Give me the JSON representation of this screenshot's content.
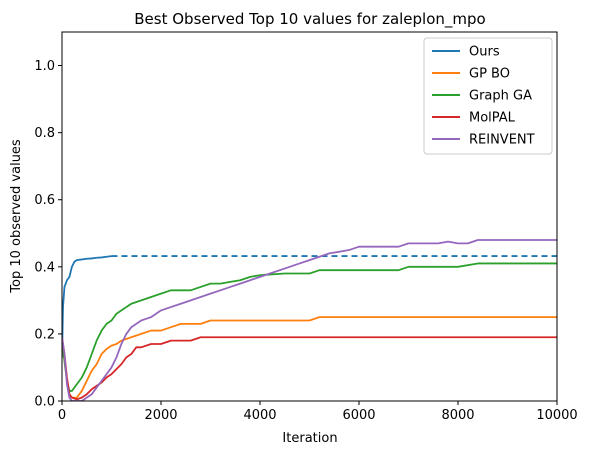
{
  "chart_data": {
    "type": "line",
    "title": "Best Observed Top 10 values for zaleplon_mpo",
    "xlabel": "Iteration",
    "ylabel": "Top 10 observed values",
    "xlim": [
      0,
      10000
    ],
    "ylim": [
      0,
      1.1
    ],
    "x_ticks": [
      0,
      2000,
      4000,
      6000,
      8000,
      10000
    ],
    "y_ticks": [
      0.0,
      0.2,
      0.4,
      0.6,
      0.8,
      1.0
    ],
    "grid": false,
    "legend_position": "top-right",
    "series": [
      {
        "name": "Ours",
        "color": "#1f77b4",
        "x": [
          0,
          20,
          50,
          100,
          150,
          200,
          250,
          300,
          400,
          500,
          600,
          700,
          800,
          900,
          1000
        ],
        "y": [
          0.13,
          0.28,
          0.34,
          0.36,
          0.37,
          0.4,
          0.415,
          0.42,
          0.422,
          0.424,
          0.425,
          0.427,
          0.428,
          0.43,
          0.432
        ],
        "extension": {
          "style": "dashed",
          "x": [
            1000,
            10000
          ],
          "y": [
            0.432,
            0.432
          ]
        }
      },
      {
        "name": "GP BO",
        "color": "#ff7f0e",
        "x": [
          0,
          50,
          100,
          150,
          200,
          300,
          400,
          500,
          600,
          700,
          800,
          900,
          1000,
          1100,
          1200,
          1400,
          1600,
          1800,
          2000,
          2200,
          2400,
          2600,
          2800,
          3000,
          4000,
          5000,
          5200,
          6000,
          8000,
          10000
        ],
        "y": [
          0.18,
          0.12,
          0.06,
          0.02,
          0.01,
          0.01,
          0.03,
          0.06,
          0.09,
          0.11,
          0.14,
          0.155,
          0.165,
          0.17,
          0.18,
          0.19,
          0.2,
          0.21,
          0.21,
          0.22,
          0.23,
          0.23,
          0.23,
          0.24,
          0.24,
          0.24,
          0.25,
          0.25,
          0.25,
          0.25
        ]
      },
      {
        "name": "Graph GA",
        "color": "#2ca02c",
        "x": [
          0,
          50,
          100,
          150,
          200,
          300,
          400,
          500,
          600,
          700,
          800,
          900,
          1000,
          1100,
          1200,
          1400,
          1600,
          1800,
          2000,
          2200,
          2400,
          2600,
          2800,
          3000,
          3200,
          3400,
          3600,
          3800,
          4000,
          4500,
          5000,
          5200,
          6000,
          6800,
          7000,
          8000,
          8400,
          9000,
          10000
        ],
        "y": [
          0.18,
          0.12,
          0.06,
          0.03,
          0.03,
          0.05,
          0.07,
          0.1,
          0.14,
          0.18,
          0.21,
          0.23,
          0.24,
          0.26,
          0.27,
          0.29,
          0.3,
          0.31,
          0.32,
          0.33,
          0.33,
          0.33,
          0.34,
          0.35,
          0.35,
          0.355,
          0.36,
          0.37,
          0.375,
          0.38,
          0.38,
          0.39,
          0.39,
          0.39,
          0.4,
          0.4,
          0.41,
          0.41,
          0.41
        ]
      },
      {
        "name": "MolPAL",
        "color": "#d62728",
        "x": [
          0,
          50,
          100,
          150,
          200,
          300,
          400,
          500,
          600,
          700,
          800,
          900,
          1000,
          1100,
          1200,
          1300,
          1400,
          1500,
          1600,
          1800,
          2000,
          2200,
          2400,
          2600,
          2800,
          3000,
          4000,
          6000,
          8000,
          10000
        ],
        "y": [
          0.19,
          0.14,
          0.07,
          0.02,
          0.01,
          0.005,
          0.01,
          0.02,
          0.035,
          0.045,
          0.055,
          0.07,
          0.08,
          0.095,
          0.11,
          0.13,
          0.14,
          0.16,
          0.16,
          0.17,
          0.17,
          0.18,
          0.18,
          0.18,
          0.19,
          0.19,
          0.19,
          0.19,
          0.19,
          0.19
        ]
      },
      {
        "name": "REINVENT",
        "color": "#9467bd",
        "x": [
          0,
          50,
          100,
          150,
          200,
          300,
          400,
          500,
          600,
          700,
          800,
          900,
          1000,
          1100,
          1200,
          1300,
          1400,
          1500,
          1600,
          1700,
          1800,
          2000,
          2200,
          2400,
          2600,
          2800,
          3000,
          3200,
          3400,
          3600,
          3800,
          4000,
          4200,
          4400,
          4600,
          4800,
          5000,
          5200,
          5400,
          5600,
          5800,
          6000,
          6400,
          6800,
          7000,
          7400,
          7600,
          7800,
          8000,
          8200,
          8400,
          8800,
          9200,
          10000
        ],
        "y": [
          0.19,
          0.14,
          0.05,
          0.01,
          0.0,
          0.0,
          0.0,
          0.01,
          0.02,
          0.04,
          0.06,
          0.08,
          0.1,
          0.13,
          0.17,
          0.2,
          0.22,
          0.23,
          0.24,
          0.245,
          0.25,
          0.27,
          0.28,
          0.29,
          0.3,
          0.31,
          0.32,
          0.33,
          0.34,
          0.35,
          0.36,
          0.37,
          0.38,
          0.39,
          0.4,
          0.41,
          0.42,
          0.43,
          0.44,
          0.445,
          0.45,
          0.46,
          0.46,
          0.46,
          0.47,
          0.47,
          0.47,
          0.475,
          0.47,
          0.47,
          0.48,
          0.48,
          0.48,
          0.48
        ]
      }
    ]
  }
}
